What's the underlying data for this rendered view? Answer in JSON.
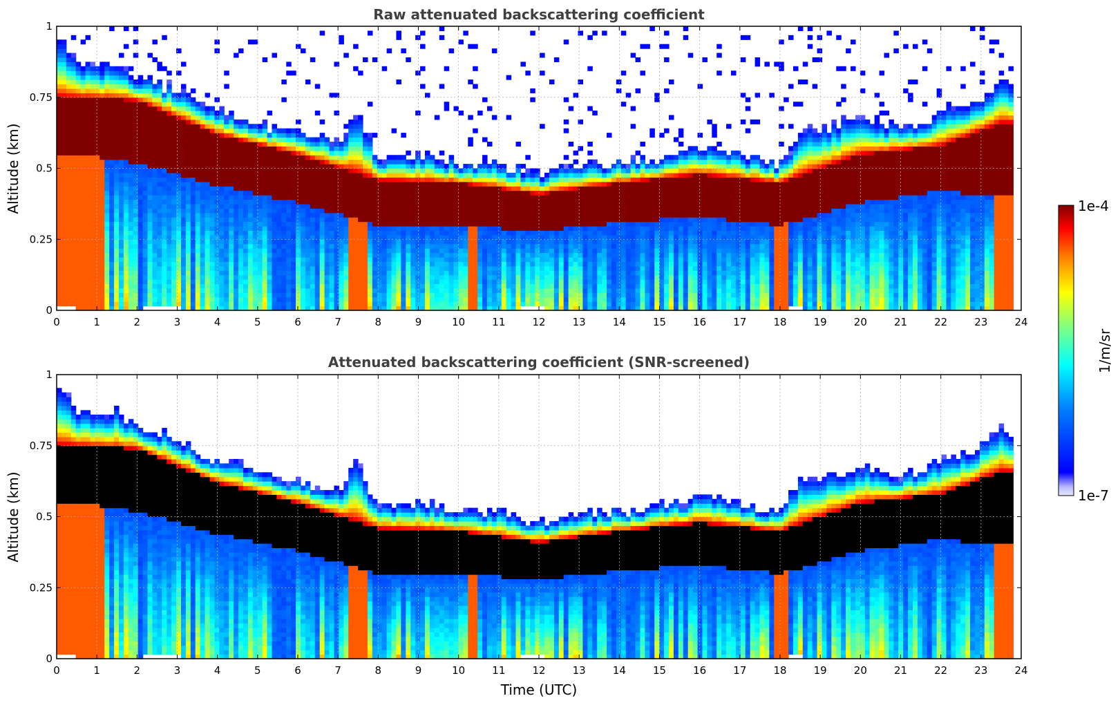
{
  "chart_data": [
    {
      "type": "heatmap",
      "title": "Raw attenuated backscattering coefficient",
      "xlabel": "",
      "ylabel": "Altitude (km)",
      "xlim": [
        0,
        24
      ],
      "ylim": [
        0,
        1
      ],
      "xticks": [
        "0",
        "1",
        "2",
        "3",
        "4",
        "5",
        "6",
        "7",
        "8",
        "9",
        "10",
        "11",
        "12",
        "13",
        "14",
        "15",
        "16",
        "17",
        "18",
        "19",
        "20",
        "21",
        "22",
        "23",
        "24"
      ],
      "yticks": [
        "0",
        "0.25",
        "0.5",
        "0.75",
        "1"
      ],
      "grid": true,
      "screened": false,
      "layer_top_km": [
        {
          "t": 0.0,
          "top": 0.98
        },
        {
          "t": 0.5,
          "top": 0.88
        },
        {
          "t": 1.0,
          "top": 0.85
        },
        {
          "t": 1.5,
          "top": 0.88
        },
        {
          "t": 2.0,
          "top": 0.82
        },
        {
          "t": 2.5,
          "top": 0.8
        },
        {
          "t": 3.0,
          "top": 0.78
        },
        {
          "t": 3.5,
          "top": 0.73
        },
        {
          "t": 4.0,
          "top": 0.7
        },
        {
          "t": 5.0,
          "top": 0.66
        },
        {
          "t": 6.0,
          "top": 0.63
        },
        {
          "t": 7.0,
          "top": 0.59
        },
        {
          "t": 7.5,
          "top": 0.7
        },
        {
          "t": 8.0,
          "top": 0.53
        },
        {
          "t": 9.0,
          "top": 0.55
        },
        {
          "t": 10.0,
          "top": 0.52
        },
        {
          "t": 11.0,
          "top": 0.52
        },
        {
          "t": 12.0,
          "top": 0.48
        },
        {
          "t": 13.0,
          "top": 0.51
        },
        {
          "t": 14.0,
          "top": 0.52
        },
        {
          "t": 15.0,
          "top": 0.54
        },
        {
          "t": 16.0,
          "top": 0.57
        },
        {
          "t": 17.0,
          "top": 0.55
        },
        {
          "t": 18.0,
          "top": 0.51
        },
        {
          "t": 18.5,
          "top": 0.63
        },
        {
          "t": 19.0,
          "top": 0.64
        },
        {
          "t": 20.0,
          "top": 0.68
        },
        {
          "t": 21.0,
          "top": 0.64
        },
        {
          "t": 22.0,
          "top": 0.7
        },
        {
          "t": 23.0,
          "top": 0.75
        },
        {
          "t": 23.5,
          "top": 0.82
        },
        {
          "t": 23.8,
          "top": 0.78
        }
      ],
      "layer_core_km": [
        {
          "t": 0.5,
          "low": 0.55,
          "high": 0.75
        },
        {
          "t": 2.0,
          "low": 0.52,
          "high": 0.74
        },
        {
          "t": 4.0,
          "low": 0.44,
          "high": 0.62
        },
        {
          "t": 6.0,
          "low": 0.38,
          "high": 0.55
        },
        {
          "t": 8.0,
          "low": 0.3,
          "high": 0.46
        },
        {
          "t": 10.0,
          "low": 0.3,
          "high": 0.45
        },
        {
          "t": 12.0,
          "low": 0.28,
          "high": 0.41
        },
        {
          "t": 14.0,
          "low": 0.31,
          "high": 0.45
        },
        {
          "t": 16.0,
          "low": 0.33,
          "high": 0.48
        },
        {
          "t": 18.0,
          "low": 0.3,
          "high": 0.45
        },
        {
          "t": 20.0,
          "low": 0.38,
          "high": 0.55
        },
        {
          "t": 22.0,
          "low": 0.42,
          "high": 0.58
        },
        {
          "t": 23.5,
          "low": 0.4,
          "high": 0.66
        }
      ]
    },
    {
      "type": "heatmap",
      "title": "Attenuated backscattering coefficient (SNR-screened)",
      "xlabel": "Time (UTC)",
      "ylabel": "Altitude (km)",
      "xlim": [
        0,
        24
      ],
      "ylim": [
        0,
        1
      ],
      "xticks": [
        "0",
        "1",
        "2",
        "3",
        "4",
        "5",
        "6",
        "7",
        "8",
        "9",
        "10",
        "11",
        "12",
        "13",
        "14",
        "15",
        "16",
        "17",
        "18",
        "19",
        "20",
        "21",
        "22",
        "23",
        "24"
      ],
      "yticks": [
        "0",
        "0.25",
        "0.5",
        "0.75",
        "1"
      ],
      "grid": true,
      "screened": true
    }
  ],
  "colorbar": {
    "label": "1/m/sr",
    "max_label": "1e-4",
    "min_label": "1e-7",
    "scale": "log",
    "colormap": "jet",
    "min_color": "#e8e8ff",
    "max_color": "#800000"
  }
}
